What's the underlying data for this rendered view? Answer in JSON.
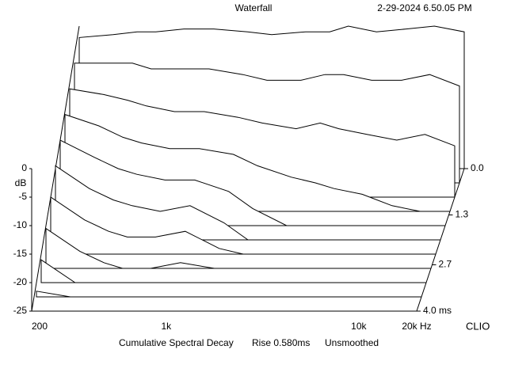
{
  "chart_data": {
    "type": "waterfall",
    "title": "Waterfall",
    "timestamp": "2-29-2024 6.50.05 PM",
    "ylabel": "dB",
    "brand": "CLIO",
    "footer": [
      "Cumulative Spectral Decay",
      "Rise 0.580ms",
      "Unsmoothed"
    ],
    "x": [
      200,
      300,
      400,
      500,
      700,
      1000,
      1500,
      2000,
      3000,
      4000,
      5000,
      7000,
      10000,
      14000,
      20000
    ],
    "xlim": [
      200,
      20000
    ],
    "xticks": [
      200,
      {
        "value": 1000,
        "label": "1k"
      },
      {
        "value": 10000,
        "label": "10k"
      },
      {
        "value": 20000,
        "label": "20k Hz"
      }
    ],
    "log_x": true,
    "ylim": [
      -25,
      0
    ],
    "yticks": [
      0,
      -5,
      -10,
      -15,
      -20,
      -25
    ],
    "zlim": [
      0,
      4
    ],
    "zticks": [
      {
        "value": 0,
        "label": "0.0"
      },
      1.3,
      2.7,
      {
        "value": 4,
        "label": "4.0 ms"
      }
    ],
    "color": "#000000",
    "series": [
      {
        "time": 0,
        "values": [
          -2,
          -1.5,
          -1,
          -1,
          -0.5,
          -0.5,
          -1,
          -1.5,
          -1,
          -1,
          0,
          -1,
          -0.5,
          0,
          -1
        ]
      },
      {
        "time": 0.4,
        "values": [
          -4,
          -4,
          -4,
          -5,
          -5,
          -5,
          -6,
          -7,
          -7,
          -6,
          -6,
          -7,
          -7,
          -6,
          -8
        ]
      },
      {
        "time": 0.8,
        "values": [
          -6,
          -7,
          -8,
          -9,
          -10,
          -10,
          -11,
          -12,
          -13,
          -12,
          -13,
          -14,
          -15,
          -14,
          -16
        ]
      },
      {
        "time": 1.2,
        "values": [
          -8,
          -10,
          -12,
          -13,
          -14,
          -14,
          -15,
          -17,
          -19,
          -20,
          -21,
          -22,
          -24,
          -25,
          -25
        ]
      },
      {
        "time": 1.6,
        "values": [
          -10,
          -13,
          -15,
          -16,
          -17,
          -17,
          -19,
          -22,
          -25,
          -25,
          -25,
          -25,
          -25,
          -25,
          -25
        ]
      },
      {
        "time": 2.0,
        "values": [
          -12,
          -16,
          -18,
          -19,
          -20,
          -19,
          -22,
          -25,
          -25,
          -25,
          -25,
          -25,
          -25,
          -25,
          -25
        ]
      },
      {
        "time": 2.4,
        "values": [
          -15,
          -19,
          -21,
          -22,
          -22,
          -21,
          -24,
          -25,
          -25,
          -25,
          -25,
          -25,
          -25,
          -25,
          -25
        ]
      },
      {
        "time": 2.8,
        "values": [
          -18,
          -22,
          -24,
          -25,
          -25,
          -24,
          -25,
          -25,
          -25,
          -25,
          -25,
          -25,
          -25,
          -25,
          -25
        ]
      },
      {
        "time": 3.2,
        "values": [
          -21,
          -25,
          -25,
          -25,
          -25,
          -25,
          -25,
          -25,
          -25,
          -25,
          -25,
          -25,
          -25,
          -25,
          -25
        ]
      },
      {
        "time": 3.6,
        "values": [
          -24,
          -25,
          -25,
          -25,
          -25,
          -25,
          -25,
          -25,
          -25,
          -25,
          -25,
          -25,
          -25,
          -25,
          -25
        ]
      },
      {
        "time": 4.0,
        "values": [
          -25,
          -25,
          -25,
          -25,
          -25,
          -25,
          -25,
          -25,
          -25,
          -25,
          -25,
          -25,
          -25,
          -25,
          -25
        ]
      }
    ]
  }
}
